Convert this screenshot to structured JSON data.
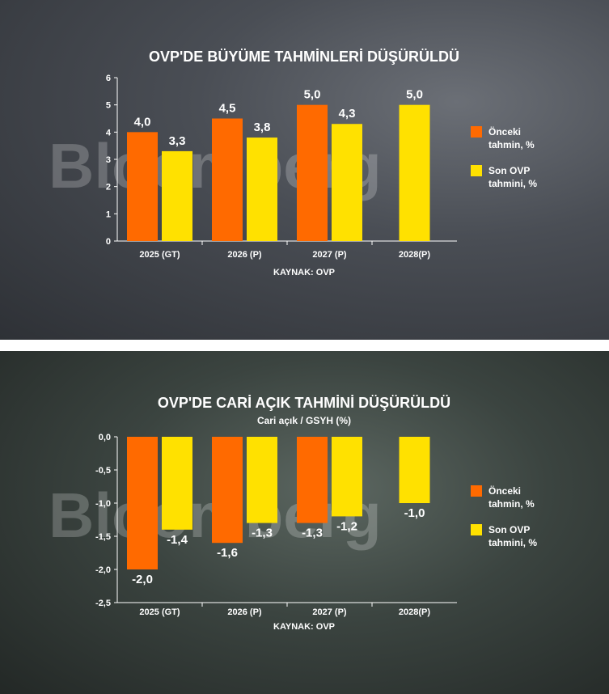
{
  "chart_data": [
    {
      "type": "bar",
      "title": "OVP'DE BÜYÜME TAHMİNLERİ DÜŞÜRÜLDÜ",
      "subtitle": "",
      "categories": [
        "2025 (GT)",
        "2026 (P)",
        "2027 (P)",
        "2028(P)"
      ],
      "series": [
        {
          "name": "Önceki tahmin, %",
          "color": "#ff6a00",
          "values": [
            4.0,
            4.5,
            5.0,
            null
          ],
          "labels": [
            "4,0",
            "4,5",
            "5,0",
            ""
          ]
        },
        {
          "name": "Son OVP tahmini, %",
          "color": "#ffe100",
          "values": [
            3.3,
            3.8,
            4.3,
            5.0
          ],
          "labels": [
            "3,3",
            "3,8",
            "4,3",
            "5,0"
          ]
        }
      ],
      "ylim": [
        0,
        6
      ],
      "yticks": [
        0,
        1,
        2,
        3,
        4,
        5,
        6
      ],
      "ytick_labels": [
        "0",
        "1",
        "2",
        "3",
        "4",
        "5",
        "6"
      ],
      "grid": false,
      "legend": "right",
      "source": "KAYNAK: OVP",
      "watermark": "Bloomberg"
    },
    {
      "type": "bar",
      "title": "OVP'DE CARİ AÇIK TAHMİNİ DÜŞÜRÜLDÜ",
      "subtitle": "Cari açık / GSYH (%)",
      "categories": [
        "2025 (GT)",
        "2026 (P)",
        "2027 (P)",
        "2028(P)"
      ],
      "series": [
        {
          "name": "Önceki tahmin, %",
          "color": "#ff6a00",
          "values": [
            -2.0,
            -1.6,
            -1.3,
            null
          ],
          "labels": [
            "-2,0",
            "-1,6",
            "-1,3",
            ""
          ]
        },
        {
          "name": "Son OVP tahmini, %",
          "color": "#ffe100",
          "values": [
            -1.4,
            -1.3,
            -1.2,
            -1.0
          ],
          "labels": [
            "-1,4",
            "-1,3",
            "-1,2",
            "-1,0"
          ]
        }
      ],
      "ylim": [
        -2.5,
        0
      ],
      "yticks": [
        0,
        -0.5,
        -1.0,
        -1.5,
        -2.0,
        -2.5
      ],
      "ytick_labels": [
        "0,0",
        "-0,5",
        "-1,0",
        "-1,5",
        "-2,0",
        "-2,5"
      ],
      "grid": false,
      "legend": "right",
      "source": "KAYNAK: OVP",
      "watermark": "Bloomberg"
    }
  ]
}
